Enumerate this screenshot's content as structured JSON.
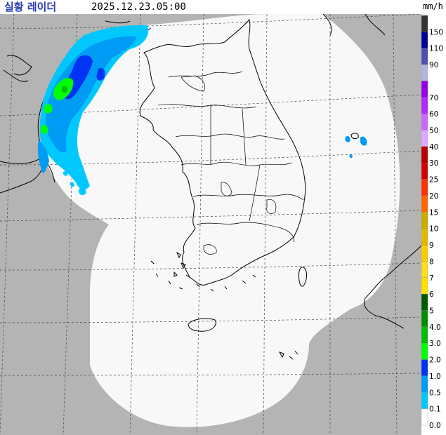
{
  "header": {
    "title": "실황 레이더",
    "timestamp": "2025.12.23.05:00"
  },
  "legend": {
    "unit": "mm/h",
    "bins": [
      {
        "label": "150",
        "color": "#333333"
      },
      {
        "label": "110",
        "color": "#000390"
      },
      {
        "label": "90",
        "color": "#4c4eb1"
      },
      {
        "label": "",
        "color": "#b3b4de"
      },
      {
        "label": "70",
        "color": "#9300e4"
      },
      {
        "label": "60",
        "color": "#b329ff"
      },
      {
        "label": "50",
        "color": "#c969ff"
      },
      {
        "label": "40",
        "color": "#e0a9ff"
      },
      {
        "label": "30",
        "color": "#b40000"
      },
      {
        "label": "25",
        "color": "#d20000"
      },
      {
        "label": "20",
        "color": "#ff3200"
      },
      {
        "label": "15",
        "color": "#ff6600"
      },
      {
        "label": "10",
        "color": "#ccaa00"
      },
      {
        "label": "9",
        "color": "#e0b900"
      },
      {
        "label": "8",
        "color": "#f9cd00"
      },
      {
        "label": "7",
        "color": "#ffdc1f"
      },
      {
        "label": "6",
        "color": "#ffe100"
      },
      {
        "label": "5",
        "color": "#005a00"
      },
      {
        "label": "4.0",
        "color": "#008c00"
      },
      {
        "label": "3.0",
        "color": "#00be00"
      },
      {
        "label": "2.0",
        "color": "#00ff00"
      },
      {
        "label": "1.0",
        "color": "#0033f5"
      },
      {
        "label": "0.5",
        "color": "#009bf5"
      },
      {
        "label": "0.1",
        "color": "#00c8ff"
      },
      {
        "label": "0.0",
        "color": "#ffffff"
      }
    ]
  },
  "map": {
    "background_color": "#b4b4b4",
    "coverage_color": "#f8f8f8",
    "grid": true
  }
}
